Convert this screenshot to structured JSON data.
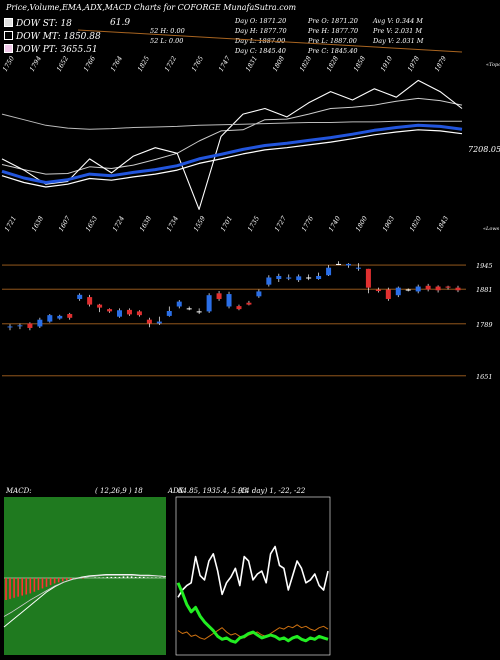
{
  "header": {
    "title": "Price,Volume,EMA,ADX,MACD Charts for COFORGE MunafaSutra.com",
    "dow_st": "DOW ST: 18",
    "dow_mt": "DOW MT: 1850.88",
    "dow_pt": "DOW PT: 3655.51",
    "top_value": "61.9",
    "stats": [
      [
        "",
        "",
        "Day O: 1871.20",
        "Pre O: 1871.20",
        "Avg V: 0.344 M"
      ],
      [
        "",
        "52 H: 0.00",
        "Day H: 1877.70",
        "Pre H: 1877.70",
        "Pre V: 2.031 M"
      ],
      [
        "",
        "52 L: 0.00",
        "Day L: 1887.00",
        "Pre L: 1887.00",
        "Day V: 2.031 M"
      ],
      [
        "",
        "",
        "Day C: 1845.40",
        "Pre C: 1845.40",
        ""
      ]
    ]
  },
  "colors": {
    "background": "#000000",
    "ema_fast": "#2255dd",
    "candle_up": "#2a6fe8",
    "candle_down": "#e03030",
    "grid": "#a86420",
    "macd_bg": "#1f7a1f",
    "adx_green": "#22ee22",
    "adx_orange": "#cc7010"
  },
  "chart_data": [
    {
      "type": "line",
      "name": "price-ema-panel",
      "right_labels": [
        "«Topo",
        "7208.05",
        "«Lows"
      ],
      "top_labels": [
        "1750",
        "1794",
        "1652",
        "1766",
        "1764",
        "1825",
        "1722",
        "1765",
        "1747",
        "1831",
        "1808",
        "1828",
        "1828",
        "1858",
        "1910",
        "1978",
        "1879"
      ],
      "bottom_labels": [
        "1721",
        "1638",
        "1607",
        "1653",
        "1724",
        "1638",
        "1734",
        "1559",
        "1701",
        "1735",
        "1727",
        "1776",
        "1740",
        "1800",
        "1903",
        "1820",
        "1843"
      ],
      "series": [
        {
          "values": [
            1760,
            1748,
            1740,
            1745,
            1755,
            1752,
            1758,
            1763,
            1770,
            1782,
            1790,
            1799,
            1806,
            1810,
            1815,
            1820,
            1826,
            1833,
            1838,
            1842,
            1840,
            1835
          ]
        },
        {
          "values": [
            1780,
            1771,
            1763,
            1764,
            1776,
            1773,
            1779,
            1789,
            1800,
            1822,
            1840,
            1842,
            1860,
            1861,
            1870,
            1880,
            1882,
            1886,
            1893,
            1898,
            1894,
            1886
          ]
        },
        {
          "values": [
            1790,
            1770,
            1745,
            1750,
            1790,
            1765,
            1795,
            1810,
            1800,
            1700,
            1830,
            1870,
            1880,
            1865,
            1890,
            1910,
            1895,
            1915,
            1900,
            1930,
            1910,
            1880
          ]
        },
        {
          "values": [
            1870,
            1860,
            1850,
            1845,
            1843,
            1844,
            1846,
            1847,
            1848,
            1850,
            1851,
            1852,
            1853,
            1854,
            1855,
            1855,
            1856,
            1856,
            1857,
            1857,
            1857,
            1857
          ]
        }
      ]
    },
    {
      "type": "bar",
      "name": "candlestick-panel",
      "ylabels": [
        "1945",
        "1881",
        "1789",
        "1651"
      ],
      "gridlines": [
        1945,
        1881,
        1789,
        1651
      ],
      "ylim": [
        1600,
        1985
      ],
      "candles": [
        {
          "o": 1780,
          "c": 1782,
          "h": 1788,
          "l": 1772
        },
        {
          "o": 1783,
          "c": 1785,
          "h": 1790,
          "l": 1775
        },
        {
          "o": 1790,
          "c": 1778,
          "h": 1793,
          "l": 1772
        },
        {
          "o": 1782,
          "c": 1800,
          "h": 1805,
          "l": 1778
        },
        {
          "o": 1795,
          "c": 1812,
          "h": 1815,
          "l": 1792
        },
        {
          "o": 1803,
          "c": 1810,
          "h": 1813,
          "l": 1800
        },
        {
          "o": 1815,
          "c": 1805,
          "h": 1818,
          "l": 1800
        },
        {
          "o": 1855,
          "c": 1866,
          "h": 1870,
          "l": 1850
        },
        {
          "o": 1860,
          "c": 1840,
          "h": 1866,
          "l": 1835
        },
        {
          "o": 1840,
          "c": 1832,
          "h": 1842,
          "l": 1820
        },
        {
          "o": 1828,
          "c": 1822,
          "h": 1830,
          "l": 1818
        },
        {
          "o": 1808,
          "c": 1825,
          "h": 1830,
          "l": 1805
        },
        {
          "o": 1826,
          "c": 1814,
          "h": 1830,
          "l": 1810
        },
        {
          "o": 1822,
          "c": 1812,
          "h": 1825,
          "l": 1808
        },
        {
          "o": 1800,
          "c": 1790,
          "h": 1805,
          "l": 1780
        },
        {
          "o": 1790,
          "c": 1795,
          "h": 1808,
          "l": 1786
        },
        {
          "o": 1810,
          "c": 1823,
          "h": 1835,
          "l": 1808
        },
        {
          "o": 1835,
          "c": 1848,
          "h": 1852,
          "l": 1830
        },
        {
          "o": 1830,
          "c": 1830,
          "h": 1835,
          "l": 1825
        },
        {
          "o": 1822,
          "c": 1822,
          "h": 1830,
          "l": 1815
        },
        {
          "o": 1822,
          "c": 1865,
          "h": 1870,
          "l": 1818
        },
        {
          "o": 1870,
          "c": 1855,
          "h": 1876,
          "l": 1850
        },
        {
          "o": 1835,
          "c": 1868,
          "h": 1874,
          "l": 1830
        },
        {
          "o": 1836,
          "c": 1828,
          "h": 1840,
          "l": 1825
        },
        {
          "o": 1845,
          "c": 1840,
          "h": 1850,
          "l": 1838
        },
        {
          "o": 1862,
          "c": 1875,
          "h": 1880,
          "l": 1858
        },
        {
          "o": 1893,
          "c": 1912,
          "h": 1918,
          "l": 1888
        },
        {
          "o": 1908,
          "c": 1916,
          "h": 1922,
          "l": 1900
        },
        {
          "o": 1909,
          "c": 1912,
          "h": 1920,
          "l": 1905
        },
        {
          "o": 1905,
          "c": 1915,
          "h": 1920,
          "l": 1900
        },
        {
          "o": 1912,
          "c": 1912,
          "h": 1920,
          "l": 1905
        },
        {
          "o": 1908,
          "c": 1916,
          "h": 1925,
          "l": 1906
        },
        {
          "o": 1918,
          "c": 1938,
          "h": 1945,
          "l": 1916
        },
        {
          "o": 1948,
          "c": 1948,
          "h": 1955,
          "l": 1945
        },
        {
          "o": 1944,
          "c": 1948,
          "h": 1950,
          "l": 1938
        },
        {
          "o": 1936,
          "c": 1938,
          "h": 1950,
          "l": 1930
        },
        {
          "o": 1935,
          "c": 1885,
          "h": 1935,
          "l": 1870
        },
        {
          "o": 1880,
          "c": 1876,
          "h": 1885,
          "l": 1872
        },
        {
          "o": 1880,
          "c": 1855,
          "h": 1885,
          "l": 1850
        },
        {
          "o": 1865,
          "c": 1885,
          "h": 1888,
          "l": 1860
        },
        {
          "o": 1880,
          "c": 1880,
          "h": 1883,
          "l": 1875
        },
        {
          "o": 1875,
          "c": 1888,
          "h": 1893,
          "l": 1870
        },
        {
          "o": 1890,
          "c": 1880,
          "h": 1895,
          "l": 1875
        },
        {
          "o": 1888,
          "c": 1878,
          "h": 1891,
          "l": 1872
        },
        {
          "o": 1888,
          "c": 1885,
          "h": 1890,
          "l": 1880
        },
        {
          "o": 1885,
          "c": 1878,
          "h": 1890,
          "l": 1873
        }
      ]
    },
    {
      "type": "area",
      "name": "macd-panel",
      "label": "MACD:",
      "params": "( 12,26,9 ) 18",
      "values_text": "64.85, 1935.4, 5.93",
      "histogram": [
        -40,
        -38,
        -36,
        -34,
        -32,
        -30,
        -28,
        -25,
        -22,
        -19,
        -16,
        -13,
        -10,
        -8,
        -6,
        -4,
        -3,
        -2,
        -1,
        -1,
        0,
        0,
        1,
        1,
        1,
        2,
        2,
        2,
        2,
        3,
        3,
        3,
        2,
        2,
        2,
        1,
        1,
        1,
        1,
        1
      ],
      "series": [
        {
          "values": [
            -70,
            -60,
            -50,
            -40,
            -30,
            -20,
            -12,
            -6,
            -2,
            1,
            3,
            4,
            5,
            5,
            5,
            5,
            4,
            4,
            3,
            2
          ]
        },
        {
          "values": [
            -55,
            -48,
            -40,
            -32,
            -25,
            -18,
            -11,
            -6,
            -2,
            0,
            2,
            3,
            4,
            4,
            4,
            4,
            3,
            3,
            3,
            2
          ]
        }
      ]
    },
    {
      "type": "line",
      "name": "adx-panel",
      "label": "ADX",
      "values_text": "(14 day) 1, -22, -22",
      "series": [
        {
          "values": [
            40,
            35,
            32,
            30,
            12,
            25,
            28,
            15,
            10,
            22,
            38,
            30,
            26,
            20,
            32,
            12,
            15,
            28,
            24,
            22,
            30,
            10,
            5,
            18,
            20,
            35,
            25,
            15,
            20,
            30,
            28,
            24,
            32,
            35,
            22
          ]
        },
        {
          "values": [
            88,
            90,
            89,
            92,
            91,
            93,
            94,
            92,
            90,
            88,
            86,
            89,
            91,
            90,
            92,
            93,
            91,
            90,
            89,
            91,
            92,
            90,
            88,
            86,
            87,
            85,
            86,
            84,
            86,
            85,
            87,
            88,
            86,
            85,
            87
          ]
        },
        {
          "values": [
            55,
            62,
            70,
            75,
            72,
            78,
            82,
            85,
            88,
            92,
            94,
            93,
            95,
            96,
            93,
            92,
            90,
            89,
            91,
            93,
            92,
            91,
            92,
            94,
            93,
            95,
            93,
            92,
            94,
            95,
            93,
            94,
            92,
            93,
            94
          ]
        }
      ]
    }
  ]
}
